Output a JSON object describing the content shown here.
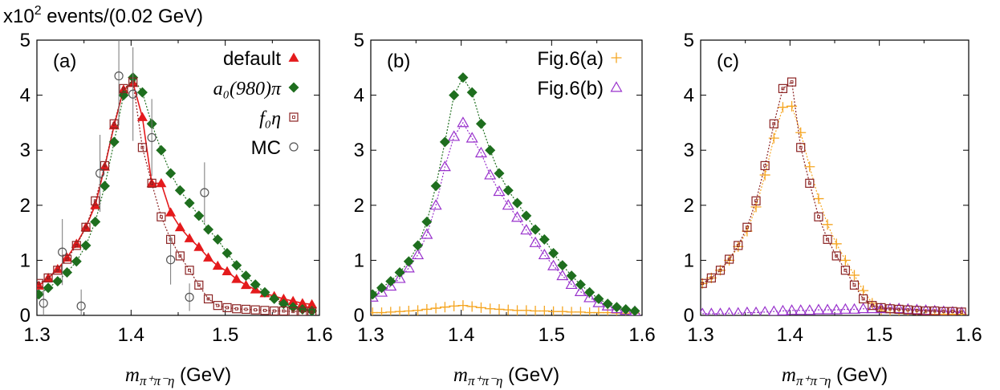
{
  "figure": {
    "y_unit_label": "x10",
    "y_unit_exp": "2",
    "y_unit_rest": " events/(0.02 GeV)",
    "x_axis_math": "m",
    "x_axis_sub": "π⁺π⁻η",
    "x_axis_unit": "(GeV)"
  },
  "chart_data": [
    {
      "type": "scatter",
      "panel_label": "(a)",
      "xlim": [
        1.3,
        1.6
      ],
      "ylim": [
        0,
        5
      ],
      "x_ticks": [
        "1.3",
        "1.4",
        "1.5",
        "1.6"
      ],
      "y_ticks": [
        "0",
        "1",
        "2",
        "3",
        "4",
        "5"
      ],
      "legend_position": "top-right",
      "series": [
        {
          "name": "default",
          "marker": "triangle-filled",
          "color": "#e41a1c",
          "line": "solid",
          "x": [
            1.302,
            1.312,
            1.322,
            1.332,
            1.342,
            1.352,
            1.362,
            1.372,
            1.382,
            1.392,
            1.402,
            1.412,
            1.422,
            1.432,
            1.442,
            1.452,
            1.462,
            1.472,
            1.482,
            1.492,
            1.502,
            1.512,
            1.522,
            1.532,
            1.542,
            1.552,
            1.562,
            1.572,
            1.582,
            1.592
          ],
          "y": [
            0.54,
            0.68,
            0.84,
            1.05,
            1.3,
            1.6,
            2.0,
            2.7,
            3.45,
            4.1,
            4.22,
            3.6,
            2.4,
            2.4,
            1.87,
            1.6,
            1.4,
            1.24,
            1.05,
            0.9,
            0.8,
            0.66,
            0.55,
            0.47,
            0.4,
            0.35,
            0.3,
            0.26,
            0.22,
            0.2
          ]
        },
        {
          "name": "a₀(980)π",
          "marker": "diamond-filled",
          "color": "#1e6e1e",
          "line": "dotted",
          "x": [
            1.302,
            1.312,
            1.322,
            1.332,
            1.342,
            1.352,
            1.362,
            1.372,
            1.382,
            1.392,
            1.402,
            1.412,
            1.422,
            1.432,
            1.442,
            1.452,
            1.462,
            1.472,
            1.482,
            1.492,
            1.502,
            1.512,
            1.522,
            1.532,
            1.542,
            1.552,
            1.562,
            1.572,
            1.582,
            1.592
          ],
          "y": [
            0.38,
            0.5,
            0.62,
            0.78,
            0.98,
            1.27,
            1.7,
            2.35,
            3.15,
            4.0,
            4.32,
            4.05,
            3.48,
            3.0,
            2.58,
            2.27,
            2.04,
            1.81,
            1.56,
            1.38,
            1.13,
            0.91,
            0.72,
            0.56,
            0.42,
            0.3,
            0.21,
            0.15,
            0.11,
            0.08
          ]
        },
        {
          "name": "f₀η",
          "marker": "square-open",
          "color": "#8b2323",
          "line": "dotted",
          "x": [
            1.302,
            1.312,
            1.322,
            1.332,
            1.342,
            1.352,
            1.362,
            1.372,
            1.382,
            1.392,
            1.402,
            1.412,
            1.422,
            1.432,
            1.442,
            1.452,
            1.462,
            1.472,
            1.482,
            1.492,
            1.502,
            1.512,
            1.522,
            1.532,
            1.542,
            1.552,
            1.562,
            1.572,
            1.582,
            1.592
          ],
          "y": [
            0.58,
            0.68,
            0.82,
            1.02,
            1.27,
            1.6,
            2.08,
            2.72,
            3.48,
            4.12,
            4.24,
            3.05,
            2.4,
            1.79,
            1.38,
            1.08,
            0.82,
            0.55,
            0.3,
            0.18,
            0.14,
            0.12,
            0.11,
            0.1,
            0.09,
            0.08,
            0.08,
            0.07,
            0.07,
            0.06
          ]
        },
        {
          "name": "MC",
          "marker": "circle-open",
          "color": "#555555",
          "line": "none",
          "x": [
            1.307,
            1.327,
            1.347,
            1.367,
            1.387,
            1.402,
            1.422,
            1.442,
            1.462,
            1.478
          ],
          "y": [
            0.22,
            1.15,
            0.17,
            2.58,
            4.35,
            4.02,
            3.23,
            1.01,
            0.33,
            2.23
          ],
          "err": [
            0.25,
            0.6,
            0.3,
            0.7,
            0.9,
            0.85,
            0.7,
            0.45,
            0.25,
            0.55
          ]
        }
      ]
    },
    {
      "type": "scatter",
      "panel_label": "(b)",
      "xlim": [
        1.3,
        1.6
      ],
      "ylim": [
        0,
        5
      ],
      "x_ticks": [
        "1.3",
        "1.4",
        "1.5",
        "1.6"
      ],
      "y_ticks": [
        "0",
        "1",
        "2",
        "3",
        "4",
        "5"
      ],
      "legend_position": "top-right",
      "series": [
        {
          "name": "Fig.6(a)",
          "marker": "plus",
          "color": "#f5a623",
          "line": "dotted",
          "x": [
            1.302,
            1.312,
            1.322,
            1.332,
            1.342,
            1.352,
            1.362,
            1.372,
            1.382,
            1.392,
            1.402,
            1.412,
            1.422,
            1.432,
            1.442,
            1.452,
            1.462,
            1.472,
            1.482,
            1.492,
            1.502,
            1.512,
            1.522,
            1.532,
            1.542,
            1.552,
            1.562,
            1.572,
            1.582,
            1.592
          ],
          "y": [
            0.05,
            0.05,
            0.06,
            0.07,
            0.08,
            0.09,
            0.11,
            0.13,
            0.15,
            0.17,
            0.18,
            0.16,
            0.14,
            0.12,
            0.11,
            0.1,
            0.09,
            0.09,
            0.08,
            0.08,
            0.07,
            0.07,
            0.06,
            0.06,
            0.05,
            0.05,
            0.05,
            0.04,
            0.04,
            0.04
          ]
        },
        {
          "name": "Fig.6(b)",
          "marker": "triangle-open",
          "color": "#9932cc",
          "line": "dotted",
          "x": [
            1.302,
            1.312,
            1.322,
            1.332,
            1.342,
            1.352,
            1.362,
            1.372,
            1.382,
            1.392,
            1.402,
            1.412,
            1.422,
            1.432,
            1.442,
            1.452,
            1.462,
            1.472,
            1.482,
            1.492,
            1.502,
            1.512,
            1.522,
            1.532,
            1.542,
            1.552,
            1.562,
            1.572,
            1.582,
            1.592
          ],
          "y": [
            0.33,
            0.42,
            0.53,
            0.67,
            0.86,
            1.1,
            1.47,
            2.0,
            2.7,
            3.25,
            3.5,
            3.22,
            2.95,
            2.55,
            2.25,
            2.0,
            1.78,
            1.55,
            1.32,
            1.1,
            0.9,
            0.72,
            0.56,
            0.43,
            0.32,
            0.23,
            0.17,
            0.12,
            0.09,
            0.07
          ]
        },
        {
          "name": "a₀(980)π",
          "marker": "diamond-filled",
          "color": "#1e6e1e",
          "line": "dotted",
          "x": [
            1.302,
            1.312,
            1.322,
            1.332,
            1.342,
            1.352,
            1.362,
            1.372,
            1.382,
            1.392,
            1.402,
            1.412,
            1.422,
            1.432,
            1.442,
            1.452,
            1.462,
            1.472,
            1.482,
            1.492,
            1.502,
            1.512,
            1.522,
            1.532,
            1.542,
            1.552,
            1.562,
            1.572,
            1.582,
            1.592
          ],
          "y": [
            0.38,
            0.5,
            0.62,
            0.78,
            0.98,
            1.27,
            1.7,
            2.35,
            3.15,
            4.0,
            4.32,
            4.05,
            3.48,
            3.0,
            2.58,
            2.27,
            2.04,
            1.81,
            1.56,
            1.38,
            1.13,
            0.91,
            0.72,
            0.56,
            0.42,
            0.3,
            0.21,
            0.15,
            0.11,
            0.08
          ]
        }
      ]
    },
    {
      "type": "scatter",
      "panel_label": "(c)",
      "xlim": [
        1.3,
        1.6
      ],
      "ylim": [
        0,
        5
      ],
      "x_ticks": [
        "1.3",
        "1.4",
        "1.5",
        "1.6"
      ],
      "y_ticks": [
        "0",
        "1",
        "2",
        "3",
        "4",
        "5"
      ],
      "legend_position": "none",
      "series": [
        {
          "name": "Fig.6(a)",
          "marker": "plus",
          "color": "#f5a623",
          "line": "dotted",
          "x": [
            1.302,
            1.312,
            1.322,
            1.332,
            1.342,
            1.352,
            1.362,
            1.372,
            1.382,
            1.392,
            1.402,
            1.412,
            1.422,
            1.432,
            1.442,
            1.452,
            1.462,
            1.472,
            1.482,
            1.492,
            1.502,
            1.512,
            1.522,
            1.532,
            1.542,
            1.552,
            1.562,
            1.572,
            1.582,
            1.592
          ],
          "y": [
            0.58,
            0.68,
            0.82,
            1.0,
            1.25,
            1.53,
            1.97,
            2.55,
            3.22,
            3.78,
            3.8,
            3.32,
            2.7,
            2.12,
            1.65,
            1.3,
            1.0,
            0.73,
            0.45,
            0.22,
            0.1,
            0.05,
            0.04,
            0.03,
            0.03,
            0.02,
            0.02,
            0.02,
            0.02,
            0.02
          ]
        },
        {
          "name": "Fig.6(b)",
          "marker": "triangle-open",
          "color": "#9932cc",
          "line": "dotted",
          "x": [
            1.302,
            1.312,
            1.322,
            1.332,
            1.342,
            1.352,
            1.362,
            1.372,
            1.382,
            1.392,
            1.402,
            1.412,
            1.422,
            1.432,
            1.442,
            1.452,
            1.462,
            1.472,
            1.482,
            1.492,
            1.502,
            1.512,
            1.522,
            1.532,
            1.542,
            1.552,
            1.562,
            1.572,
            1.582,
            1.592
          ],
          "y": [
            0.03,
            0.03,
            0.03,
            0.04,
            0.04,
            0.05,
            0.05,
            0.06,
            0.07,
            0.08,
            0.09,
            0.09,
            0.09,
            0.1,
            0.1,
            0.1,
            0.11,
            0.11,
            0.12,
            0.12,
            0.12,
            0.12,
            0.12,
            0.11,
            0.1,
            0.09,
            0.08,
            0.07,
            0.06,
            0.05
          ]
        },
        {
          "name": "f₀η",
          "marker": "square-open",
          "color": "#8b2323",
          "line": "dotted",
          "x": [
            1.302,
            1.312,
            1.322,
            1.332,
            1.342,
            1.352,
            1.362,
            1.372,
            1.382,
            1.392,
            1.402,
            1.412,
            1.422,
            1.432,
            1.442,
            1.452,
            1.462,
            1.472,
            1.482,
            1.492,
            1.502,
            1.512,
            1.522,
            1.532,
            1.542,
            1.552,
            1.562,
            1.572,
            1.582,
            1.592
          ],
          "y": [
            0.58,
            0.68,
            0.82,
            1.02,
            1.27,
            1.6,
            2.08,
            2.72,
            3.48,
            4.12,
            4.24,
            3.05,
            2.4,
            1.79,
            1.38,
            1.08,
            0.82,
            0.55,
            0.3,
            0.18,
            0.14,
            0.12,
            0.11,
            0.1,
            0.09,
            0.08,
            0.08,
            0.07,
            0.07,
            0.06
          ]
        }
      ]
    }
  ]
}
